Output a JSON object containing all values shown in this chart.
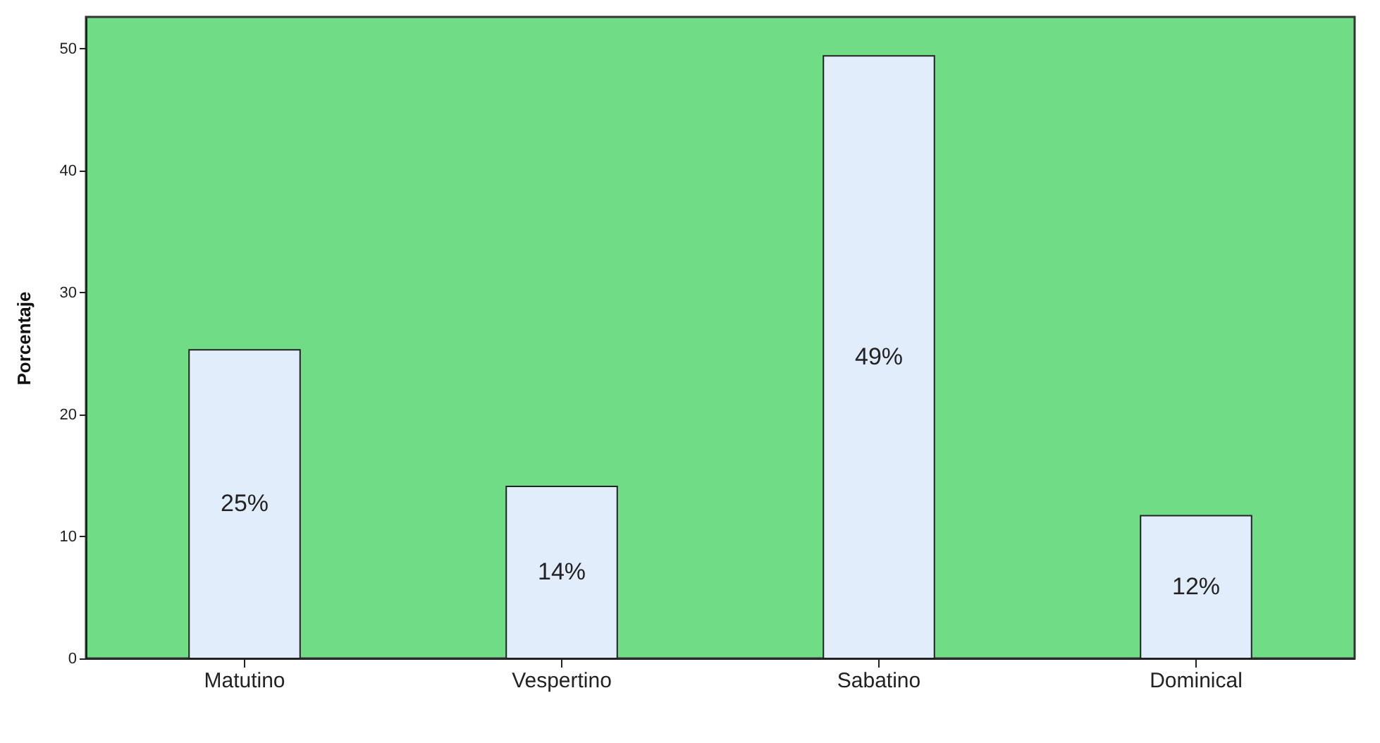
{
  "chart_data": {
    "type": "bar",
    "ylabel": "Porcentaje",
    "categories": [
      "Matutino",
      "Vespertino",
      "Sabatino",
      "Dominical"
    ],
    "values": [
      25.3,
      14.1,
      49.4,
      11.7
    ],
    "value_labels": [
      "25%",
      "14%",
      "49%",
      "12%"
    ],
    "color": "#e1edfa",
    "ylim": [
      0,
      52.6
    ],
    "yticks": [
      0,
      10,
      20,
      30,
      40,
      50
    ],
    "grid": false
  }
}
